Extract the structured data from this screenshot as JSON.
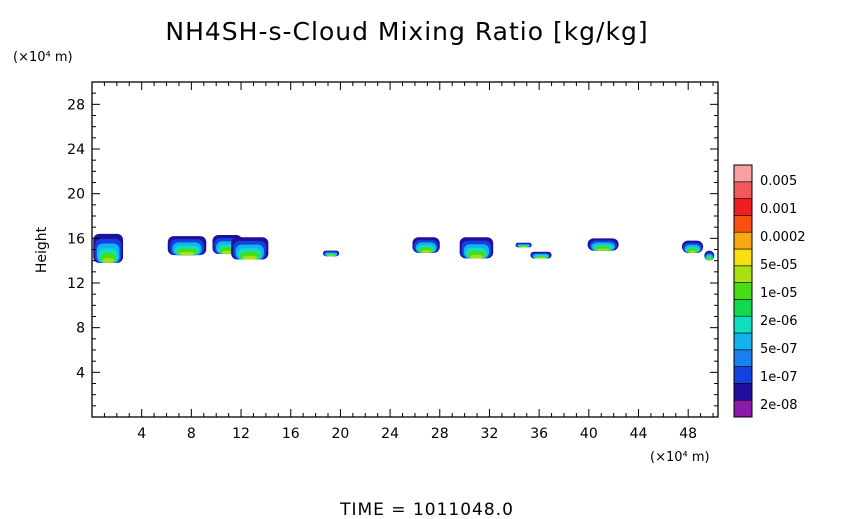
{
  "chart_data": {
    "type": "heatmap",
    "title": "NH4SH-s-Cloud Mixing Ratio [kg/kg]",
    "ylabel": "Height",
    "xunit": "(×10⁴ m)",
    "yunit": "(×10⁴ m)",
    "footer": "TIME = 1011048.0",
    "xlim": [
      0,
      50.4
    ],
    "ylim": [
      0,
      30
    ],
    "xticks": [
      "4",
      "8",
      "12",
      "16",
      "20",
      "24",
      "28",
      "32",
      "36",
      "40",
      "44",
      "48"
    ],
    "yticks": [
      "4",
      "8",
      "12",
      "16",
      "20",
      "24",
      "28"
    ],
    "colorbar": {
      "labels": [
        "0.005",
        "0.001",
        "0.0002",
        "5e-05",
        "1e-05",
        "2e-06",
        "5e-07",
        "1e-07",
        "2e-08"
      ],
      "colors": [
        "#8a1aa8",
        "#1f0f9c",
        "#1540e0",
        "#1a7ff0",
        "#12b4f0",
        "#10dfbe",
        "#14d94e",
        "#48dc12",
        "#a8e014",
        "#f8e010",
        "#f8a810",
        "#f85010",
        "#f01e1e",
        "#f05a5a",
        "#f8a0a0"
      ]
    },
    "clouds": [
      {
        "x0": 0.1,
        "x1": 2.5,
        "y0": 13.8,
        "y1": 16.4
      },
      {
        "x0": 6.1,
        "x1": 9.2,
        "y0": 14.5,
        "y1": 16.2
      },
      {
        "x0": 9.7,
        "x1": 12.1,
        "y0": 14.6,
        "y1": 16.3
      },
      {
        "x0": 11.2,
        "x1": 14.2,
        "y0": 14.1,
        "y1": 16.1
      },
      {
        "x0": 18.6,
        "x1": 19.9,
        "y0": 14.4,
        "y1": 14.9
      },
      {
        "x0": 25.8,
        "x1": 28.0,
        "y0": 14.7,
        "y1": 16.1
      },
      {
        "x0": 29.6,
        "x1": 32.3,
        "y0": 14.2,
        "y1": 16.1
      },
      {
        "x0": 34.1,
        "x1": 35.4,
        "y0": 15.2,
        "y1": 15.6
      },
      {
        "x0": 35.3,
        "x1": 37.0,
        "y0": 14.2,
        "y1": 14.8
      },
      {
        "x0": 39.9,
        "x1": 42.4,
        "y0": 14.9,
        "y1": 16.0
      },
      {
        "x0": 47.5,
        "x1": 49.2,
        "y0": 14.7,
        "y1": 15.8
      },
      {
        "x0": 49.3,
        "x1": 50.1,
        "y0": 14.0,
        "y1": 14.9
      }
    ],
    "grid": false,
    "legend": "colorbar-right"
  }
}
